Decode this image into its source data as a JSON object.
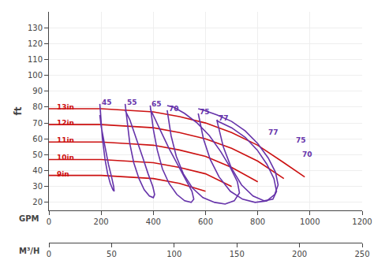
{
  "chart_data": {
    "type": "line",
    "ylabel": "ft",
    "xlabel": "GPM",
    "x2label": "M³/H",
    "xlim": [
      0,
      1200
    ],
    "xticks": [
      0,
      200,
      400,
      600,
      800,
      1000,
      1200
    ],
    "x2lim": [
      0,
      250
    ],
    "x2ticks": [
      0,
      50,
      100,
      150,
      200,
      250
    ],
    "ylim": [
      15,
      140
    ],
    "yticks": [
      20,
      30,
      40,
      50,
      60,
      70,
      80,
      90,
      100,
      110,
      120,
      130
    ],
    "grid": true,
    "series": [
      {
        "color": "#cc1111",
        "x": [
          0,
          50,
          100,
          200,
          300,
          400,
          500,
          600,
          700,
          800,
          900,
          980
        ],
        "values": [
          79,
          79,
          79,
          79,
          78,
          77,
          74,
          70,
          64,
          56,
          45,
          36
        ]
      },
      {
        "color": "#cc1111",
        "x": [
          0,
          50,
          100,
          200,
          300,
          400,
          500,
          600,
          700,
          800,
          900
        ],
        "values": [
          69,
          69,
          69,
          69,
          68,
          67,
          64,
          60,
          54,
          46,
          35
        ]
      },
      {
        "color": "#cc1111",
        "x": [
          0,
          50,
          100,
          200,
          300,
          400,
          500,
          600,
          700,
          800
        ],
        "values": [
          58,
          58,
          58,
          58,
          57,
          56,
          53,
          49,
          42,
          33
        ]
      },
      {
        "color": "#cc1111",
        "x": [
          0,
          50,
          100,
          200,
          300,
          400,
          500,
          600,
          700
        ],
        "values": [
          47,
          47,
          47,
          47,
          46,
          45,
          42,
          38,
          30
        ]
      },
      {
        "color": "#cc1111",
        "x": [
          0,
          50,
          100,
          200,
          300,
          400,
          500,
          600
        ],
        "values": [
          37,
          37,
          37,
          37,
          36,
          35,
          32,
          27
        ]
      },
      {
        "color": "#6633aa",
        "x": [
          195,
          197,
          200,
          205,
          215,
          225,
          235,
          245,
          250,
          248,
          240,
          228,
          215,
          200,
          195
        ],
        "values": [
          82,
          78,
          70,
          60,
          47,
          38,
          32,
          28,
          27,
          30,
          36,
          44,
          55,
          68,
          75
        ]
      },
      {
        "color": "#6633aa",
        "x": [
          292,
          295,
          300,
          310,
          325,
          345,
          365,
          385,
          400,
          405,
          398,
          380,
          360,
          335,
          310,
          292
        ],
        "values": [
          82,
          78,
          69,
          57,
          45,
          35,
          28,
          24,
          23,
          25,
          30,
          38,
          48,
          60,
          72,
          78
        ]
      },
      {
        "color": "#6633aa",
        "x": [
          388,
          392,
          400,
          415,
          435,
          460,
          490,
          520,
          545,
          555,
          548,
          525,
          495,
          460,
          428,
          400,
          388
        ],
        "values": [
          81,
          76,
          66,
          53,
          41,
          32,
          25,
          21,
          20,
          22,
          27,
          34,
          43,
          54,
          65,
          75,
          79
        ]
      },
      {
        "color": "#6633aa",
        "x": [
          453,
          458,
          468,
          488,
          515,
          550,
          590,
          635,
          675,
          710,
          730,
          722,
          695,
          658,
          615,
          568,
          520,
          478,
          453
        ],
        "values": [
          78,
          73,
          62,
          49,
          38,
          29,
          23,
          20,
          19,
          21,
          26,
          33,
          42,
          52,
          62,
          70,
          76,
          80,
          81
        ]
      },
      {
        "color": "#6633aa",
        "x": [
          572,
          578,
          592,
          618,
          652,
          695,
          742,
          790,
          835,
          865,
          878,
          868,
          840,
          800,
          752,
          700,
          645,
          594,
          572
        ],
        "values": [
          76,
          71,
          60,
          47,
          36,
          27,
          22,
          20,
          21,
          25,
          31,
          39,
          48,
          57,
          65,
          71,
          75,
          78,
          79
        ]
      },
      {
        "color": "#6633aa",
        "x": [
          643,
          650,
          668,
          698,
          738,
          782,
          825,
          858,
          872,
          862,
          835,
          798,
          752,
          700,
          648,
          643
        ],
        "values": [
          72,
          67,
          55,
          42,
          31,
          24,
          21,
          22,
          27,
          35,
          44,
          53,
          61,
          67,
          71,
          72
        ]
      }
    ],
    "annotations": [
      {
        "text": "13in",
        "x": 25,
        "y": 80,
        "color": "#cc1111"
      },
      {
        "text": "12in",
        "x": 25,
        "y": 70,
        "color": "#cc1111"
      },
      {
        "text": "11in",
        "x": 25,
        "y": 59,
        "color": "#cc1111"
      },
      {
        "text": "10in",
        "x": 25,
        "y": 48,
        "color": "#cc1111"
      },
      {
        "text": "9in",
        "x": 25,
        "y": 38,
        "color": "#cc1111"
      },
      {
        "text": "45",
        "x": 195,
        "y": 83,
        "color": "#6633aa"
      },
      {
        "text": "55",
        "x": 292,
        "y": 83,
        "color": "#6633aa"
      },
      {
        "text": "65",
        "x": 388,
        "y": 82,
        "color": "#6633aa"
      },
      {
        "text": "70",
        "x": 453,
        "y": 79,
        "color": "#6633aa"
      },
      {
        "text": "75",
        "x": 572,
        "y": 77,
        "color": "#6633aa"
      },
      {
        "text": "77",
        "x": 643,
        "y": 73,
        "color": "#6633aa"
      },
      {
        "text": "77",
        "x": 835,
        "y": 64,
        "color": "#6633aa"
      },
      {
        "text": "75",
        "x": 940,
        "y": 59,
        "color": "#6633aa"
      },
      {
        "text": "70",
        "x": 965,
        "y": 50,
        "color": "#6633aa"
      }
    ]
  }
}
